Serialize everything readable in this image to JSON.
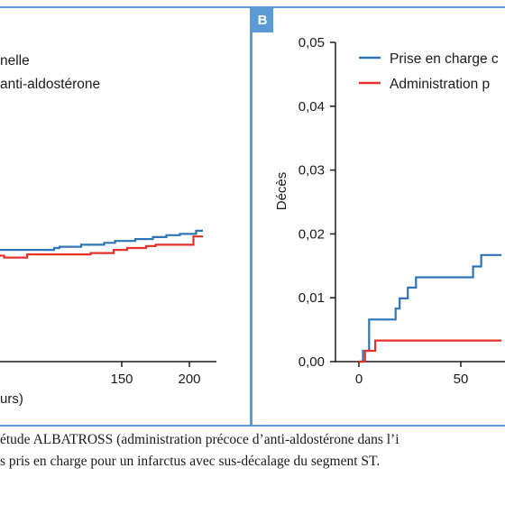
{
  "colors": {
    "frame": "#5b9bd5",
    "blue_series": "#2e75b6",
    "red_series": "#e8302d",
    "badge": "#5b9bd5"
  },
  "caption": {
    "line1": "étude ALBATROSS (administration précoce d’anti-aldostérone dans l’i",
    "line2": "s pris en charge pour un infarctus avec sus-décalage du segment ST."
  },
  "chart_data": [
    {
      "panel": "left-cropped",
      "type": "line",
      "step": true,
      "legend_texts": [
        "nelle",
        "anti-aldostérone"
      ],
      "xlabel": "urs)",
      "x_tick_labels": [
        "150",
        "200"
      ],
      "x_tick_values": [
        150,
        200
      ],
      "xlim": [
        60,
        210
      ],
      "series": [
        {
          "color_key": "blue_series",
          "x": [
            60,
            100,
            104,
            120,
            137,
            145,
            160,
            173,
            183,
            193,
            205,
            210
          ],
          "y": [
            0.0175,
            0.0178,
            0.018,
            0.0183,
            0.0186,
            0.0189,
            0.0192,
            0.0195,
            0.0198,
            0.02,
            0.0205,
            0.0205
          ]
        },
        {
          "color_key": "red_series",
          "x": [
            60,
            63,
            80,
            127,
            144,
            154,
            168,
            175,
            203,
            210
          ],
          "y": [
            0.0166,
            0.0163,
            0.0168,
            0.017,
            0.0175,
            0.0178,
            0.0181,
            0.0183,
            0.0196,
            0.0196
          ]
        }
      ]
    },
    {
      "panel": "B",
      "type": "line",
      "step": true,
      "ylabel": "Décès",
      "y_tick_labels": [
        "0,00",
        "0,01",
        "0,02",
        "0,03",
        "0,04",
        "0,05"
      ],
      "y_tick_values": [
        0,
        0.01,
        0.02,
        0.03,
        0.04,
        0.05
      ],
      "ylim": [
        0,
        0.05
      ],
      "x_tick_labels": [
        "0",
        "50"
      ],
      "x_tick_values": [
        0,
        50
      ],
      "legend_placement": "top-right",
      "series": [
        {
          "name": "Prise en charge c",
          "color_key": "blue_series",
          "x": [
            0,
            2,
            5,
            13,
            18,
            20,
            24,
            28,
            38,
            40,
            53,
            56,
            60,
            70
          ],
          "y": [
            0,
            0.0017,
            0.0066,
            0.0066,
            0.0083,
            0.0099,
            0.0116,
            0.0132,
            0.0132,
            0.0132,
            0.0132,
            0.0149,
            0.0167,
            0.0167
          ]
        },
        {
          "name": "Administration p",
          "color_key": "red_series",
          "x": [
            0,
            3,
            8,
            40,
            70
          ],
          "y": [
            0,
            0.0017,
            0.0033,
            0.0033,
            0.0033
          ]
        }
      ]
    }
  ]
}
